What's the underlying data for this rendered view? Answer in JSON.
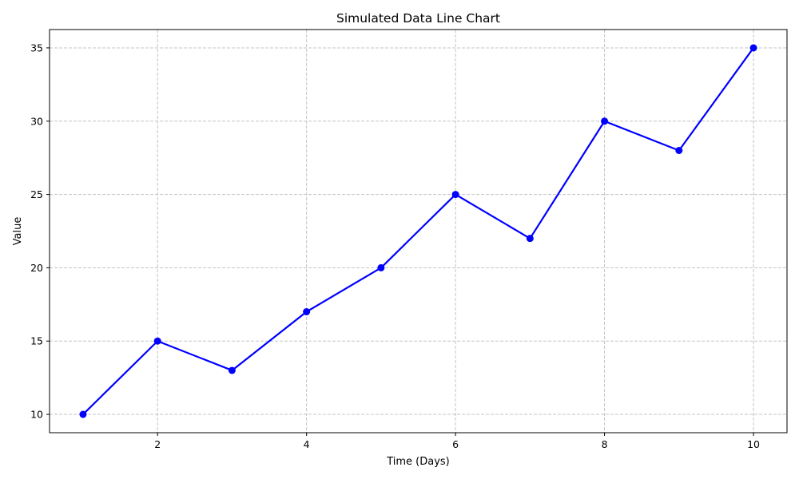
{
  "chart_data": {
    "type": "line",
    "title": "Simulated Data Line Chart",
    "xlabel": "Time (Days)",
    "ylabel": "Value",
    "xlim": [
      0.55,
      10.45
    ],
    "ylim": [
      8.75,
      36.25
    ],
    "xticks": [
      2,
      4,
      6,
      8,
      10
    ],
    "yticks": [
      10,
      15,
      20,
      25,
      30,
      35
    ],
    "grid": true,
    "grid_style": "dashed",
    "series": [
      {
        "color": "#0000ff",
        "marker": "circle",
        "x": [
          1,
          2,
          3,
          4,
          5,
          6,
          7,
          8,
          9,
          10
        ],
        "y": [
          10,
          15,
          13,
          17,
          20,
          25,
          22,
          30,
          28,
          35
        ]
      }
    ]
  }
}
